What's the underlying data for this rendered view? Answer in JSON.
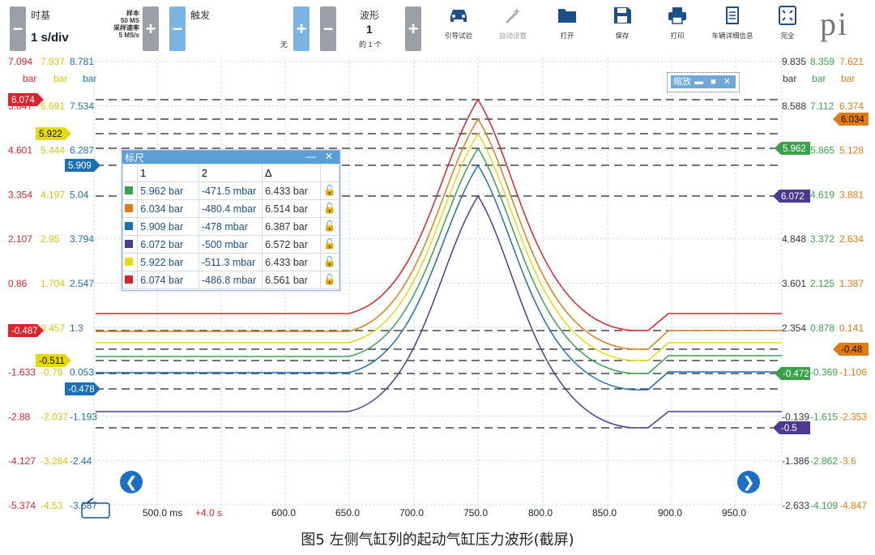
{
  "toolbar": {
    "timebase_label": "时基",
    "timebase_value": "1 s/div",
    "samples_label": "样本",
    "samples_value": "50 MS",
    "rate_label": "采样速率",
    "rate_value": "5 MS/s",
    "trigger_label": "触发",
    "trigger_value": "无",
    "waveform_label": "波形",
    "waveform_value": "1",
    "waveform_of": "的 1 个",
    "buttons": [
      {
        "label": "引导试验",
        "icon": "car-icon"
      },
      {
        "label": "自动设置",
        "icon": "wand-icon"
      },
      {
        "label": "打开",
        "icon": "folder-icon"
      },
      {
        "label": "保存",
        "icon": "save-icon"
      },
      {
        "label": "打印",
        "icon": "print-icon"
      },
      {
        "label": "车辆详细信息",
        "icon": "clipboard-icon"
      },
      {
        "label": "完全",
        "icon": "fullscreen-icon"
      }
    ],
    "logo": "pi"
  },
  "axes": {
    "left_rows": [
      [
        "7.094",
        "7.937",
        "8.781"
      ],
      [
        "5.847",
        "6.691",
        "7.534"
      ],
      [
        "4.601",
        "5.444",
        "6.287"
      ],
      [
        "3.354",
        "4.197",
        "5.04"
      ],
      [
        "2.107",
        "2.95",
        "3.794"
      ],
      [
        "0.86",
        "1.704",
        "2.547"
      ],
      [
        "-0.386",
        "0.457",
        "1.3"
      ],
      [
        "-1.633",
        "-0.79",
        "0.053"
      ],
      [
        "-2.88",
        "-2.037",
        "-1.193"
      ],
      [
        "-4.127",
        "-3.284",
        "-2.44"
      ],
      [
        "-5.374",
        "-4.53",
        "-3.687"
      ]
    ],
    "right_rows": [
      [
        "9.835",
        "8.359",
        "7.621"
      ],
      [
        "8.588",
        "7.112",
        "6.374"
      ],
      [
        "7.341",
        "5.865",
        "5.128"
      ],
      [
        "6.094",
        "4.619",
        "3.881"
      ],
      [
        "4.848",
        "3.372",
        "2.634"
      ],
      [
        "3.601",
        "2.125",
        "1.387"
      ],
      [
        "2.354",
        "0.878",
        "0.141"
      ],
      [
        "1.107",
        "-0.369",
        "-1.106"
      ],
      [
        "-0.139",
        "-1.615",
        "-2.353"
      ],
      [
        "-1.386",
        "-2.862",
        "-3.6"
      ],
      [
        "-2.633",
        "-4.109",
        "-4.847"
      ]
    ],
    "unit": "bar",
    "x_ticks": [
      "500.0 ms",
      "600.0",
      "650.0",
      "700.0",
      "750.0",
      "800.0",
      "850.0",
      "900.0",
      "950.0"
    ],
    "x_offset": "+4.0 s",
    "left_colors": [
      "#d9232d",
      "#d9c40a",
      "#1b6fb3"
    ],
    "right_colors": [
      "#333333",
      "#3aa14a",
      "#e07b14"
    ]
  },
  "markers": {
    "left": [
      {
        "text": "6.074",
        "color": "#d9232d"
      },
      {
        "text": "5.922",
        "color": "#e6d90c"
      },
      {
        "text": "5.909",
        "color": "#1b6fb3"
      },
      {
        "text": "-0.487",
        "color": "#d9232d"
      },
      {
        "text": "-0.511",
        "color": "#e6d90c"
      },
      {
        "text": "-0.478",
        "color": "#1b6fb3"
      }
    ],
    "right": [
      {
        "text": "6.034",
        "color": "#e07b14"
      },
      {
        "text": "5.962",
        "color": "#3aa14a"
      },
      {
        "text": "6.072",
        "color": "#4b3a8f"
      },
      {
        "text": "-0.48",
        "color": "#e07b14"
      },
      {
        "text": "-0.472",
        "color": "#3aa14a"
      },
      {
        "text": "-0.5",
        "color": "#4b3a8f"
      }
    ]
  },
  "ruler": {
    "title": "标尺",
    "headers": [
      "1",
      "2",
      "Δ"
    ],
    "rows": [
      {
        "color": "#3aa14a",
        "v1": "5.962 bar",
        "v2": "-471.5 mbar",
        "d": "6.433 bar"
      },
      {
        "color": "#e07b14",
        "v1": "6.034 bar",
        "v2": "-480.4 mbar",
        "d": "6.514 bar"
      },
      {
        "color": "#1b6fb3",
        "v1": "5.909 bar",
        "v2": "-478 mbar",
        "d": "6.387 bar"
      },
      {
        "color": "#4b3a8f",
        "v1": "6.072 bar",
        "v2": "-500 mbar",
        "d": "6.572 bar"
      },
      {
        "color": "#e6d90c",
        "v1": "5.922 bar",
        "v2": "-511.3 mbar",
        "d": "6.433 bar"
      },
      {
        "color": "#d9232d",
        "v1": "6.074 bar",
        "v2": "-486.8 mbar",
        "d": "6.561 bar"
      }
    ]
  },
  "zoom_label": "缩放",
  "caption": "图5   左侧气缸列的起动气缸压力波形(截屏)"
}
